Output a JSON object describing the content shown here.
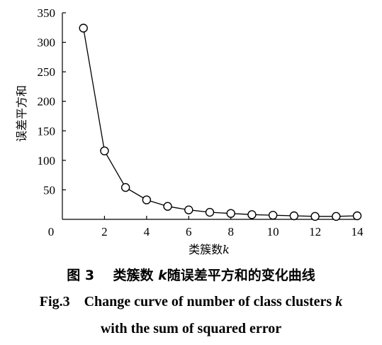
{
  "chart_data": {
    "type": "line",
    "x": [
      1,
      2,
      3,
      4,
      5,
      6,
      7,
      8,
      9,
      10,
      11,
      12,
      13,
      14
    ],
    "series": [
      {
        "values": [
          324,
          116,
          54,
          33,
          22,
          16,
          12,
          10,
          8,
          7,
          6,
          5,
          5,
          6
        ]
      }
    ],
    "xlabel": "类簇数",
    "xlabel_var": "k",
    "ylabel": "误差平方和",
    "xlim": [
      0,
      14
    ],
    "ylim": [
      0,
      350
    ],
    "xticks": [
      0,
      2,
      4,
      6,
      8,
      10,
      12,
      14
    ],
    "yticks": [
      50,
      100,
      150,
      200,
      250,
      300,
      350
    ],
    "marker": "open-circle",
    "grid": false,
    "legend": "none"
  },
  "caption": {
    "cn_prefix": "图 3",
    "cn_text": "类簇数 ",
    "cn_var": "k",
    "cn_suffix": "随误差平方和的变化曲线",
    "en_prefix": "Fig.3",
    "en_line1": "Change curve of number of class clusters ",
    "en_var": "k",
    "en_line2": "with the sum of squared error"
  }
}
